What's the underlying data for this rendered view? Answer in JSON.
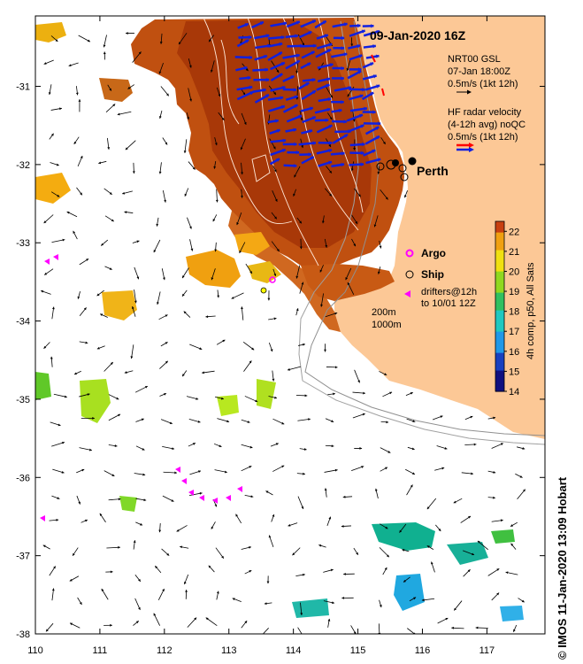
{
  "map": {
    "title": "09-Jan-2020 16Z",
    "city": "Perth",
    "lon_ticks": [
      "110",
      "111",
      "112",
      "113",
      "114",
      "115",
      "116",
      "117"
    ],
    "lat_ticks": [
      "-31",
      "-32",
      "-33",
      "-34",
      "-35",
      "-36",
      "-37",
      "-38"
    ],
    "lon_range": [
      110,
      117.9
    ],
    "lat_range": [
      -38,
      -30.1
    ],
    "land_color": "#fcc896",
    "legend": {
      "gsl_line1": "NRT00 GSL",
      "gsl_line2": "07-Jan 18:00Z",
      "gsl_line3": "0.5m/s (1kt 12h)",
      "hf_line1": "HF radar velocity",
      "hf_line2": "(4-12h avg) noQC",
      "hf_line3": "0.5m/s (1kt 12h)",
      "argo": "Argo",
      "ship": "Ship",
      "drifter_line1": "drifters@12h",
      "drifter_line2": "to 10/01 12Z",
      "iso1": "200m",
      "iso2": "1000m"
    },
    "colorbar": {
      "min": 14,
      "max": 22.5,
      "ticks": [
        "14",
        "15",
        "16",
        "17",
        "18",
        "19",
        "20",
        "21",
        "22"
      ],
      "label": "4h comp, p50, All Sats"
    },
    "credit": "© IMOS 11-Jan-2020 13:09 Hobart",
    "colors": {
      "hf_arrow": "#1020e0",
      "hf_legend_red": "#ff0000",
      "drifter": "#ff00ff",
      "argo": "#ff00ff"
    }
  }
}
